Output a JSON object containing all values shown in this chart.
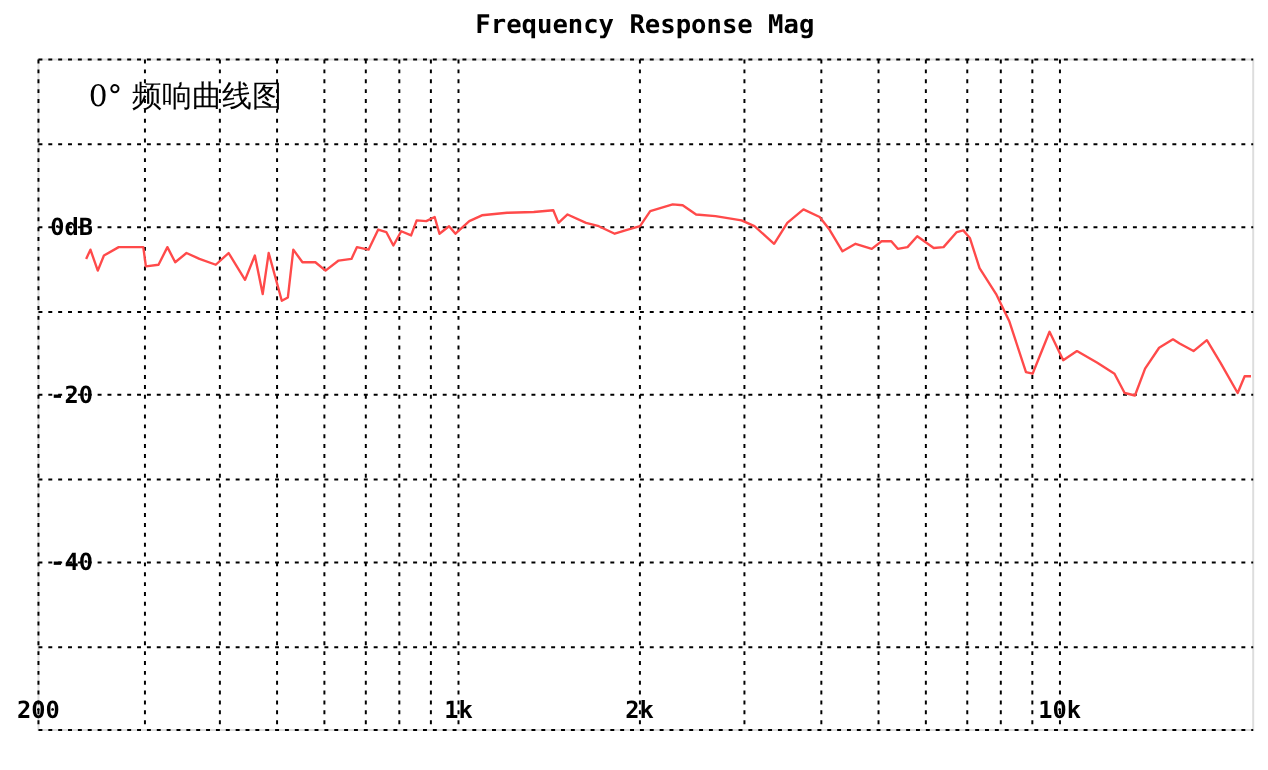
{
  "chart_data": {
    "type": "line",
    "title": "Frequency Response Mag",
    "annotations": [
      "0° 频响曲线图"
    ],
    "x": [
      241,
      245,
      252,
      258,
      273,
      287,
      300,
      303,
      318,
      329,
      339,
      354,
      372,
      396,
      416,
      443,
      460,
      474,
      485,
      510,
      522,
      533,
      552,
      580,
      603,
      634,
      666,
      680,
      711,
      738,
      761,
      782,
      806,
      837,
      855,
      887,
      916,
      933,
      968,
      992,
      1046,
      1098,
      1209,
      1339,
      1443,
      1472,
      1524,
      1636,
      1718,
      1826,
      1920,
      2012,
      2092,
      2280,
      2369,
      2494,
      2686,
      2968,
      3119,
      3363,
      3537,
      3763,
      4004,
      4157,
      4370,
      4594,
      4889,
      5076,
      5268,
      5401,
      5606,
      5819,
      6199,
      6436,
      6771,
      6942,
      7118,
      7388,
      7872,
      8276,
      8826,
      9053,
      9660,
      10180,
      10730,
      11600,
      12390,
      12880,
      13400,
      13930,
      14700,
      15500,
      15900,
      16770,
      17650,
      18600,
      19860,
      20400,
      20900
    ],
    "series": [
      {
        "color": "#ff4a4a",
        "values": [
          -3.9,
          -2.8,
          -5.3,
          -3.5,
          -2.5,
          -2.5,
          -2.5,
          -4.8,
          -4.6,
          -2.5,
          -4.3,
          -3.2,
          -3.9,
          -4.6,
          -3.2,
          -6.4,
          -3.5,
          -8.1,
          -3.2,
          -8.9,
          -8.5,
          -2.8,
          -4.3,
          -4.3,
          -5.3,
          -4.1,
          -3.9,
          -2.5,
          -2.8,
          -0.4,
          -0.7,
          -2.3,
          -0.6,
          -1.1,
          0.7,
          0.6,
          1.1,
          -0.9,
          0,
          -0.9,
          0.6,
          1.3,
          1.6,
          1.7,
          1.9,
          0.4,
          1.4,
          0.4,
          0,
          -0.9,
          -0.4,
          0,
          1.8,
          2.6,
          2.5,
          1.4,
          1.2,
          0.7,
          0,
          -2.1,
          0.4,
          2.0,
          1.1,
          -0.4,
          -3.0,
          -2.1,
          -2.7,
          -1.8,
          -1.8,
          -2.7,
          -2.5,
          -1.2,
          -2.6,
          -2.5,
          -0.7,
          -0.5,
          -1.4,
          -5.0,
          -8.1,
          -11.3,
          -17.4,
          -17.6,
          -12.6,
          -16.0,
          -14.9,
          -16.3,
          -17.6,
          -19.9,
          -20.2,
          -17.0,
          -14.5,
          -13.5,
          -14.0,
          -14.9,
          -13.6,
          -16.3,
          -19.9,
          -17.9,
          -17.9
        ]
      }
    ],
    "xlim": [
      200,
      21000
    ],
    "ylim": [
      -60,
      20
    ],
    "log": "x",
    "grid": true,
    "xticks": [
      200,
      {
        "value": 300,
        "label": null
      },
      {
        "value": 400,
        "label": null
      },
      {
        "value": 500,
        "label": null
      },
      {
        "value": 600,
        "label": null
      },
      {
        "value": 700,
        "label": null
      },
      {
        "value": 800,
        "label": null
      },
      {
        "value": 900,
        "label": null
      },
      {
        "value": 1000,
        "label": "1k"
      },
      {
        "value": 2000,
        "label": "2k"
      },
      {
        "value": 3000,
        "label": null
      },
      {
        "value": 4000,
        "label": null
      },
      {
        "value": 5000,
        "label": null
      },
      {
        "value": 6000,
        "label": null
      },
      {
        "value": 7000,
        "label": null
      },
      {
        "value": 8000,
        "label": null
      },
      {
        "value": 9000,
        "label": null
      },
      {
        "value": 10000,
        "label": "10k"
      }
    ],
    "yticks": [
      {
        "value": -60,
        "label": null
      },
      {
        "value": -50,
        "label": null
      },
      -40,
      {
        "value": -30,
        "label": null
      },
      -20,
      {
        "value": -10,
        "label": null
      },
      {
        "value": 0,
        "label": "0dB"
      },
      {
        "value": 10,
        "label": null
      },
      {
        "value": 20,
        "label": null
      }
    ]
  }
}
